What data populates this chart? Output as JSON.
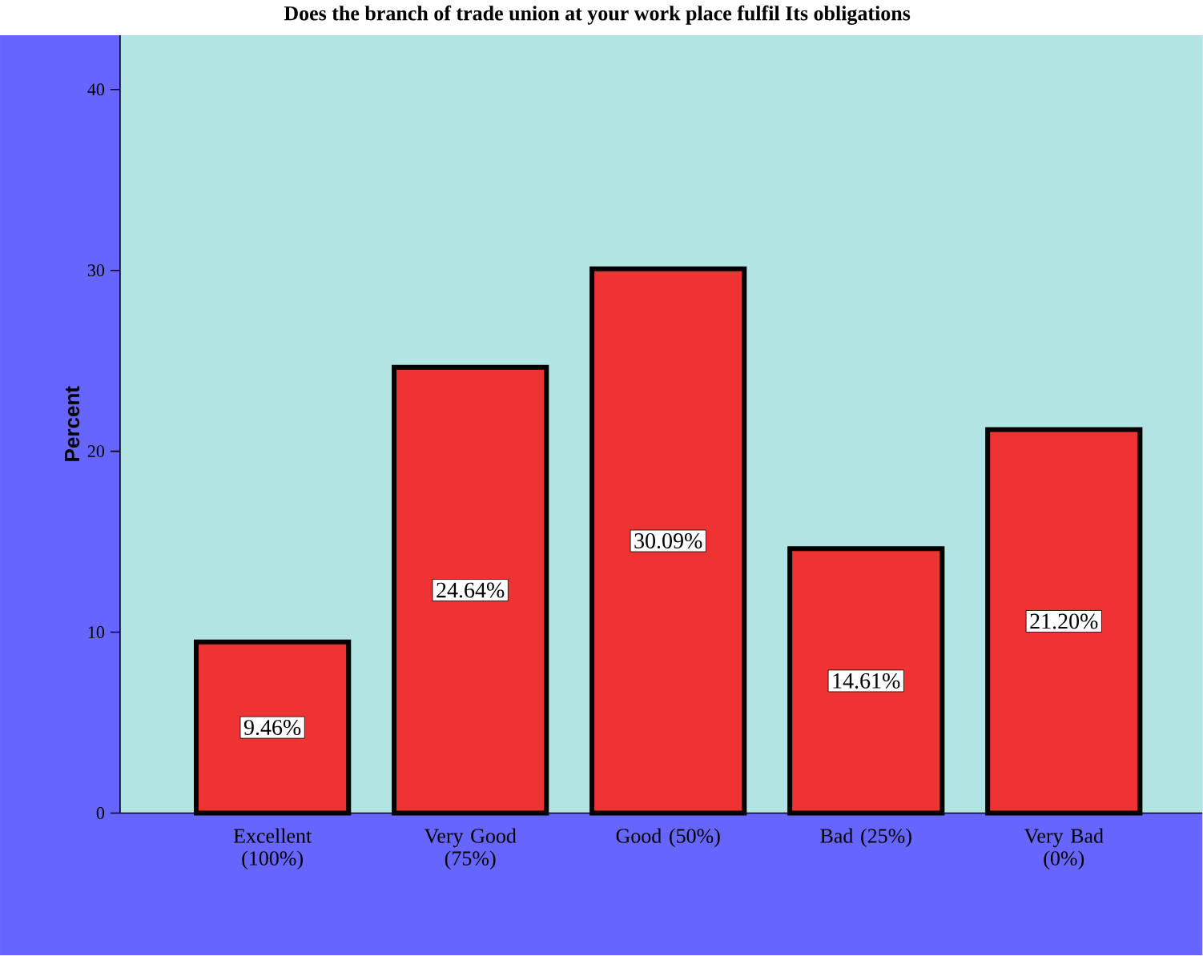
{
  "chart_data": {
    "type": "bar",
    "title": "Does the branch of trade union at your work place fulfil Its obligations",
    "ylabel": "Percent",
    "categories": [
      "Excellent (100%)",
      "Very Good (75%)",
      "Good (50%)",
      "Bad (25%)",
      "Very Bad (0%)"
    ],
    "values": [
      9.46,
      24.64,
      30.09,
      14.61,
      21.2
    ],
    "value_labels": [
      "9.46%",
      "24.64%",
      "30.09%",
      "14.61%",
      "21.20%"
    ],
    "color": "#ee3333",
    "ylim": [
      0,
      43
    ],
    "yticks": [
      0,
      10,
      20,
      30,
      40
    ]
  }
}
